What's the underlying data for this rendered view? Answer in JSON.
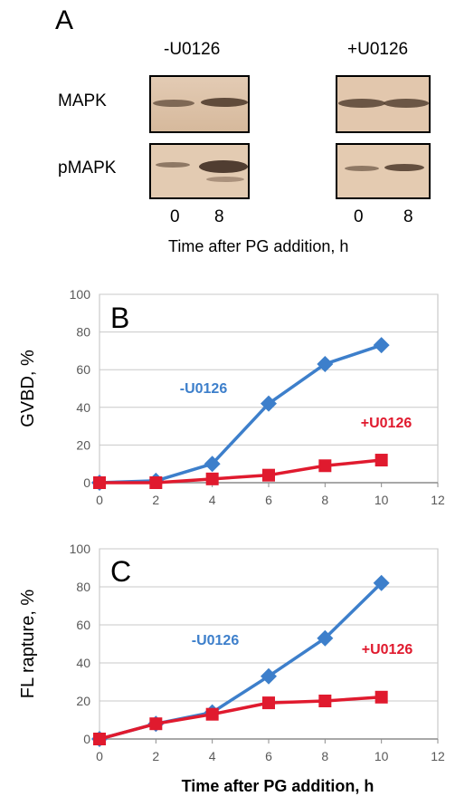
{
  "panel_a": {
    "letter": "A",
    "conditions": [
      "-U0126",
      "+U0126"
    ],
    "rows": [
      "MAPK",
      "pMAPK"
    ],
    "lanes": [
      "0",
      "8",
      "0",
      "8"
    ],
    "caption": "Time after PG addition, h"
  },
  "chart_data": [
    {
      "type": "line",
      "panel_letter": "B",
      "ylabel": "GVBD, %",
      "xlabel": "",
      "xlim": [
        0,
        12
      ],
      "ylim": [
        0,
        100
      ],
      "x_ticks": [
        "0",
        "2",
        "4",
        "6",
        "8",
        "10",
        "12"
      ],
      "y_ticks": [
        "0",
        "20",
        "40",
        "60",
        "80",
        "100"
      ],
      "grid": true,
      "series": [
        {
          "name": "-U0126",
          "color": "#3d7fcb",
          "marker": "diamond",
          "x": [
            0,
            2,
            4,
            6,
            8,
            10
          ],
          "y": [
            0,
            1,
            10,
            42,
            63,
            73
          ]
        },
        {
          "name": "+U0126",
          "color": "#e01a2e",
          "marker": "square",
          "x": [
            0,
            2,
            4,
            6,
            8,
            10
          ],
          "y": [
            0,
            0,
            2,
            4,
            9,
            12
          ]
        }
      ]
    },
    {
      "type": "line",
      "panel_letter": "C",
      "ylabel": "FL rapture, %",
      "xlabel": "Time after PG addition, h",
      "xlim": [
        0,
        12
      ],
      "ylim": [
        0,
        100
      ],
      "x_ticks": [
        "0",
        "2",
        "4",
        "6",
        "8",
        "10",
        "12"
      ],
      "y_ticks": [
        "0",
        "20",
        "40",
        "60",
        "80",
        "100"
      ],
      "grid": true,
      "series": [
        {
          "name": "-U0126",
          "color": "#3d7fcb",
          "marker": "diamond",
          "x": [
            0,
            2,
            4,
            6,
            8,
            10
          ],
          "y": [
            0,
            8,
            14,
            33,
            53,
            82
          ]
        },
        {
          "name": "+U0126",
          "color": "#e01a2e",
          "marker": "square",
          "x": [
            0,
            2,
            4,
            6,
            8,
            10
          ],
          "y": [
            0,
            8,
            13,
            19,
            20,
            22
          ]
        }
      ]
    }
  ]
}
